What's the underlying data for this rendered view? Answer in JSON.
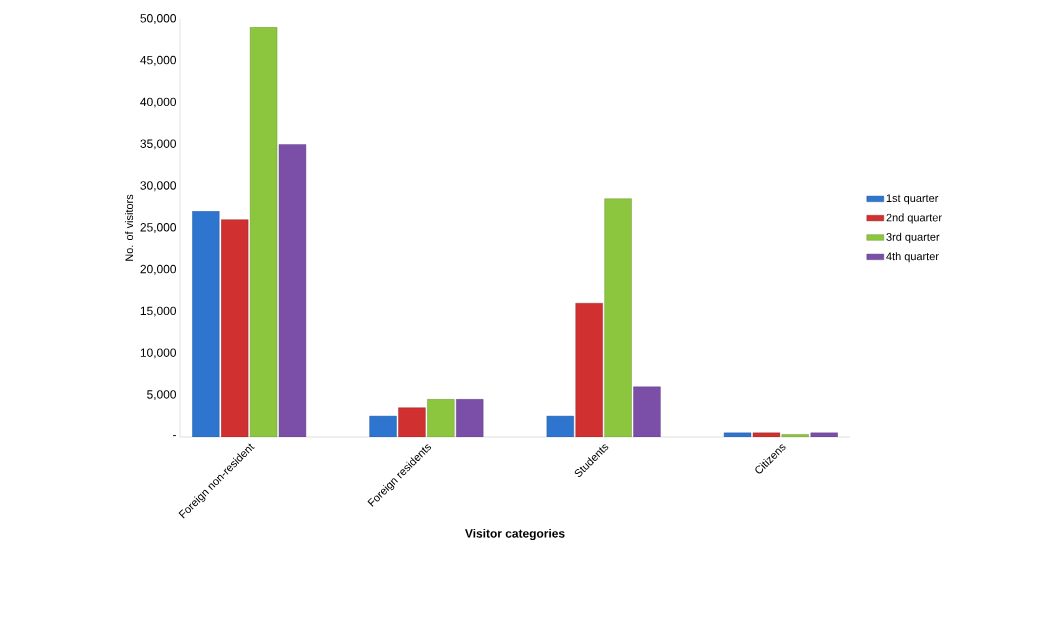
{
  "chart_data": {
    "type": "bar",
    "xlabel": "Visitor categories",
    "ylabel": "No. of visitors",
    "categories": [
      "Foreign non-resident",
      "Foreign residents",
      "Students",
      "Citizens"
    ],
    "series": [
      {
        "name": "1st quarter",
        "color": "#2e75d0",
        "values": [
          27000,
          2500,
          2500,
          500
        ]
      },
      {
        "name": "2nd quarter",
        "color": "#d03030",
        "values": [
          26000,
          3500,
          16000,
          500
        ]
      },
      {
        "name": "3rd quarter",
        "color": "#8cc63f",
        "values": [
          49000,
          4500,
          28500,
          300
        ]
      },
      {
        "name": "4th quarter",
        "color": "#7b4fa8",
        "values": [
          35000,
          4500,
          6000,
          500
        ]
      }
    ],
    "ylim": [
      0,
      50000
    ],
    "yticks": [
      {
        "value": 0,
        "label": "-"
      },
      {
        "value": 5000,
        "label": "5,000"
      },
      {
        "value": 10000,
        "label": "10,000"
      },
      {
        "value": 15000,
        "label": "15,000"
      },
      {
        "value": 20000,
        "label": "20,000"
      },
      {
        "value": 25000,
        "label": "25,000"
      },
      {
        "value": 30000,
        "label": "30,000"
      },
      {
        "value": 35000,
        "label": "35,000"
      },
      {
        "value": 40000,
        "label": "40,000"
      },
      {
        "value": 45000,
        "label": "45,000"
      },
      {
        "value": 50000,
        "label": "50,000"
      }
    ],
    "grid": false,
    "legend": "right"
  }
}
